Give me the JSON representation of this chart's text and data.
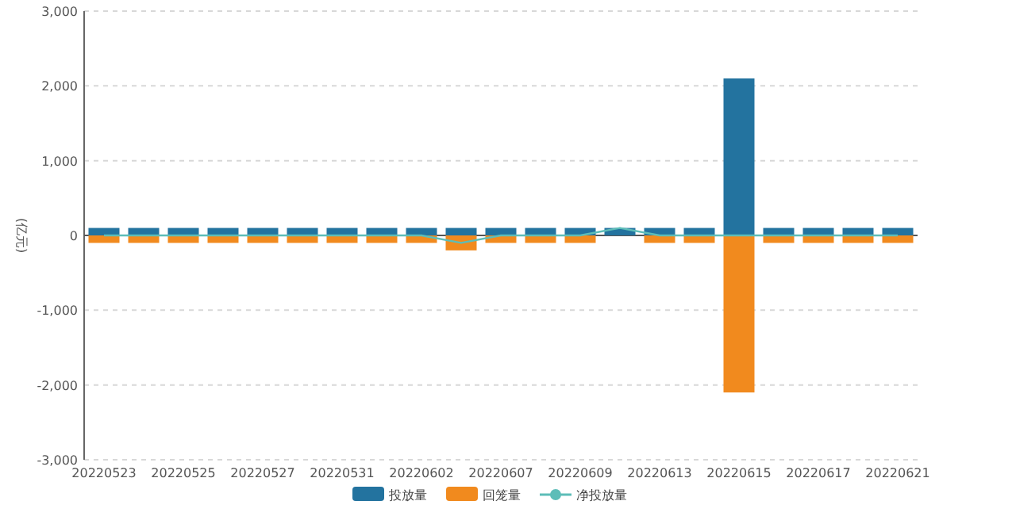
{
  "chart_data": {
    "type": "bar",
    "ylabel": "(亿元)",
    "categories": [
      "20220523",
      null,
      "20220525",
      null,
      "20220527",
      null,
      "20220531",
      null,
      "20220602",
      null,
      "20220607",
      null,
      "20220609",
      null,
      "20220613",
      null,
      "20220615",
      null,
      "20220617",
      null,
      "20220621"
    ],
    "series": [
      {
        "name": "投放量",
        "color": "#23739f",
        "values": [
          100,
          100,
          100,
          100,
          100,
          100,
          100,
          100,
          100,
          100,
          100,
          100,
          100,
          100,
          100,
          100,
          2100,
          100,
          100,
          100,
          100
        ]
      },
      {
        "name": "回笼量",
        "color": "#f18a1e",
        "values": [
          -100,
          -100,
          -100,
          -100,
          -100,
          -100,
          -100,
          -100,
          -100,
          -200,
          -100,
          -100,
          -100,
          0,
          -100,
          -100,
          -2100,
          -100,
          -100,
          -100,
          -100
        ]
      },
      {
        "name": "净投放量",
        "type": "line",
        "color": "#5dbdb8",
        "values": [
          0,
          0,
          0,
          0,
          0,
          0,
          0,
          0,
          0,
          -100,
          0,
          0,
          0,
          100,
          0,
          0,
          0,
          0,
          0,
          0,
          0
        ]
      }
    ],
    "ylim": [
      -3000,
      3000
    ],
    "yticks": [
      {
        "value": -3000,
        "label": "-3,000"
      },
      {
        "value": -2000,
        "label": "-2,000"
      },
      {
        "value": -1000,
        "label": "-1,000"
      },
      0,
      {
        "value": 1000,
        "label": "1,000"
      },
      {
        "value": 2000,
        "label": "2,000"
      },
      {
        "value": 3000,
        "label": "3,000"
      }
    ],
    "grid": "y",
    "legend": "bottom",
    "stacked": true
  }
}
